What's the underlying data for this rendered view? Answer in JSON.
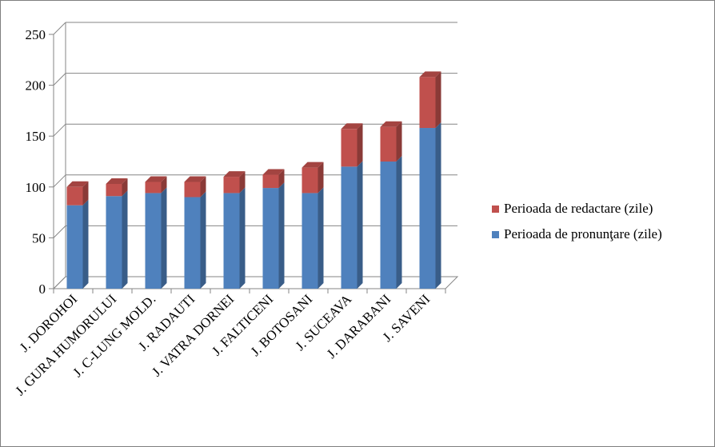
{
  "chart_data": {
    "type": "bar",
    "stacked": true,
    "three_d": true,
    "categories": [
      "J. DOROHOI",
      "J. GURA HUMORULUI",
      "J. C-LUNG MOLD.",
      "J. RADAUTI",
      "J. VATRA DORNEI",
      "J. FALTICENI",
      "J. BOTOSANI",
      "J. SUCEAVA",
      "J. DARABANI",
      "J. SAVENI"
    ],
    "series": [
      {
        "name": "Perioada de pronunţare (zile)",
        "color": "#4f81bd",
        "values": [
          82,
          91,
          94,
          90,
          94,
          99,
          94,
          120,
          125,
          158
        ]
      },
      {
        "name": "Perioada de redactare (zile)",
        "color": "#c0504d",
        "values": [
          18,
          12,
          11,
          15,
          16,
          13,
          25,
          37,
          34,
          50
        ]
      }
    ],
    "yticks": [
      "0",
      "50",
      "100",
      "150",
      "200",
      "250"
    ],
    "ylim": [
      0,
      250
    ],
    "grid": true,
    "legend_position": "right",
    "legend_order": [
      "Perioada de redactare (zile)",
      "Perioada de pronunţare (zile)"
    ]
  }
}
